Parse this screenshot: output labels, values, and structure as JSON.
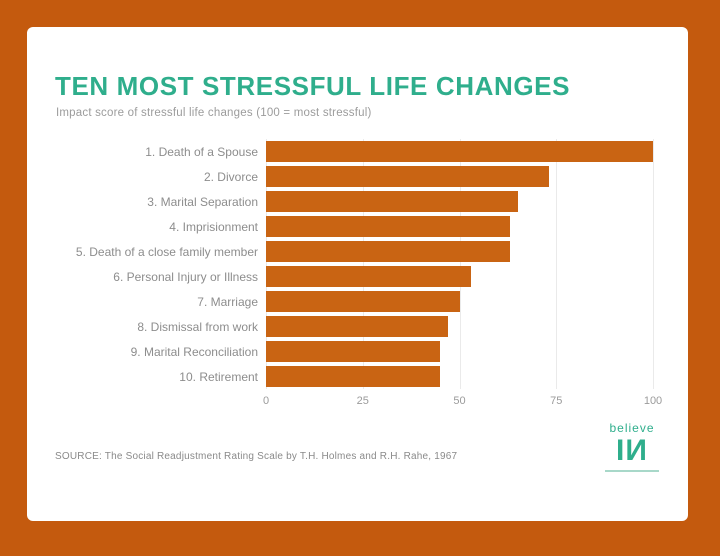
{
  "theme": {
    "page_bg": "#C45A0E",
    "card_bg": "#FFFFFF",
    "accent": "#2FAE8C",
    "bar_color": "#C96413",
    "grid_color": "#EAEAEA"
  },
  "header": {
    "title": "TEN MOST STRESSFUL LIFE CHANGES",
    "subtitle": "Impact score of stressful life changes (100 = most stressful)"
  },
  "chart_data": {
    "type": "bar",
    "orientation": "horizontal",
    "title": "TEN MOST STRESSFUL LIFE CHANGES",
    "subtitle": "Impact score of stressful life changes (100 = most stressful)",
    "categories": [
      "1. Death of a Spouse",
      "2. Divorce",
      "3. Marital Separation",
      "4. Imprisionment",
      "5. Death of a close family member",
      "6. Personal Injury or Illness",
      "7. Marriage",
      "8. Dismissal from work",
      "9. Marital Reconciliation",
      "10. Retirement"
    ],
    "values": [
      100,
      73,
      65,
      63,
      63,
      53,
      50,
      47,
      45,
      45
    ],
    "xlabel": "",
    "ylabel": "",
    "xlim": [
      0,
      100
    ],
    "x_ticks": [
      0,
      25,
      50,
      75,
      100
    ],
    "grid": true,
    "legend": false,
    "bar_color": "#C96413"
  },
  "footer": {
    "source": "SOURCE: The Social Readjustment Rating Scale by T.H. Holmes and R.H. Rahe, 1967"
  },
  "logo": {
    "word": "believe",
    "mark": "IИ"
  }
}
